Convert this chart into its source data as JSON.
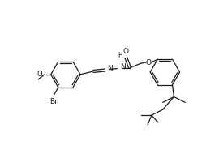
{
  "bg": "#ffffff",
  "lc": "#1a1a1a",
  "lw": 0.9,
  "fs": 6.0,
  "xlim": [
    0,
    27
  ],
  "ylim": [
    0,
    17.4
  ],
  "fw": 2.7,
  "fh": 1.74,
  "dpi": 100
}
